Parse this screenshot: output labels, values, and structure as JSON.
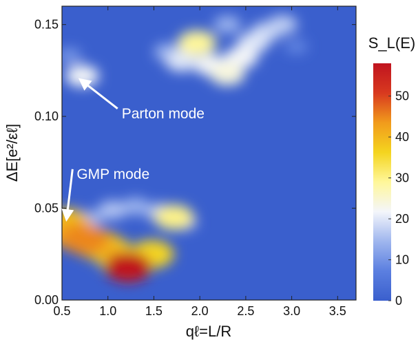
{
  "chart_data": {
    "type": "heatmap",
    "title": "",
    "xlabel": "qℓ=L/R",
    "ylabel": "ΔE[e²/εℓ]",
    "xlim": [
      0.5,
      3.7
    ],
    "ylim": [
      0.0,
      0.16
    ],
    "x_ticks": [
      0.5,
      1.0,
      1.5,
      2.0,
      2.5,
      3.0,
      3.5
    ],
    "x_tick_labels": [
      "0.5",
      "1.0",
      "1.5",
      "2.0",
      "2.5",
      "3.0",
      "3.5"
    ],
    "y_ticks": [
      0.0,
      0.05,
      0.1,
      0.15
    ],
    "y_tick_labels": [
      "0.00",
      "0.05",
      "0.10",
      "0.15"
    ],
    "colorbar": {
      "title": "S_L(E)",
      "range": [
        0,
        58
      ],
      "ticks": [
        0,
        10,
        20,
        30,
        40,
        50
      ],
      "tick_labels": [
        "0",
        "10",
        "20",
        "30",
        "40",
        "50"
      ],
      "colors": [
        "#3a5fcd",
        "#5b7fe0",
        "#9fb6ee",
        "#f4f6fb",
        "#fff79a",
        "#f4d41f",
        "#f19b1c",
        "#d8391f",
        "#c0141f"
      ]
    },
    "background_value": 0,
    "blobs": [
      {
        "x": 0.55,
        "y": 0.042,
        "value": 38
      },
      {
        "x": 0.62,
        "y": 0.036,
        "value": 42
      },
      {
        "x": 0.75,
        "y": 0.033,
        "value": 45
      },
      {
        "x": 0.9,
        "y": 0.03,
        "value": 40
      },
      {
        "x": 1.02,
        "y": 0.027,
        "value": 36
      },
      {
        "x": 1.12,
        "y": 0.022,
        "value": 33
      },
      {
        "x": 1.22,
        "y": 0.018,
        "value": 58
      },
      {
        "x": 1.35,
        "y": 0.022,
        "value": 30
      },
      {
        "x": 1.48,
        "y": 0.025,
        "value": 36
      },
      {
        "x": 0.8,
        "y": 0.044,
        "value": 14
      },
      {
        "x": 1.05,
        "y": 0.049,
        "value": 16
      },
      {
        "x": 1.3,
        "y": 0.051,
        "value": 14
      },
      {
        "x": 1.55,
        "y": 0.048,
        "value": 15
      },
      {
        "x": 1.72,
        "y": 0.045,
        "value": 30
      },
      {
        "x": 1.85,
        "y": 0.042,
        "value": 10
      },
      {
        "x": 0.72,
        "y": 0.122,
        "value": 22
      },
      {
        "x": 0.58,
        "y": 0.133,
        "value": 10
      },
      {
        "x": 1.65,
        "y": 0.135,
        "value": 14
      },
      {
        "x": 1.8,
        "y": 0.13,
        "value": 20
      },
      {
        "x": 1.97,
        "y": 0.14,
        "value": 29
      },
      {
        "x": 2.12,
        "y": 0.128,
        "value": 22
      },
      {
        "x": 2.3,
        "y": 0.123,
        "value": 24
      },
      {
        "x": 2.45,
        "y": 0.132,
        "value": 22
      },
      {
        "x": 2.58,
        "y": 0.14,
        "value": 20
      },
      {
        "x": 2.72,
        "y": 0.146,
        "value": 18
      },
      {
        "x": 2.9,
        "y": 0.15,
        "value": 17
      },
      {
        "x": 2.3,
        "y": 0.15,
        "value": 14
      },
      {
        "x": 3.05,
        "y": 0.138,
        "value": 8
      }
    ],
    "annotations": [
      {
        "text": "Parton mode",
        "x": 1.15,
        "y": 0.099,
        "arrow_to": [
          0.7,
          0.12
        ]
      },
      {
        "text": "GMP mode",
        "x": 0.66,
        "y": 0.066,
        "arrow_to": [
          0.55,
          0.044
        ]
      }
    ]
  }
}
